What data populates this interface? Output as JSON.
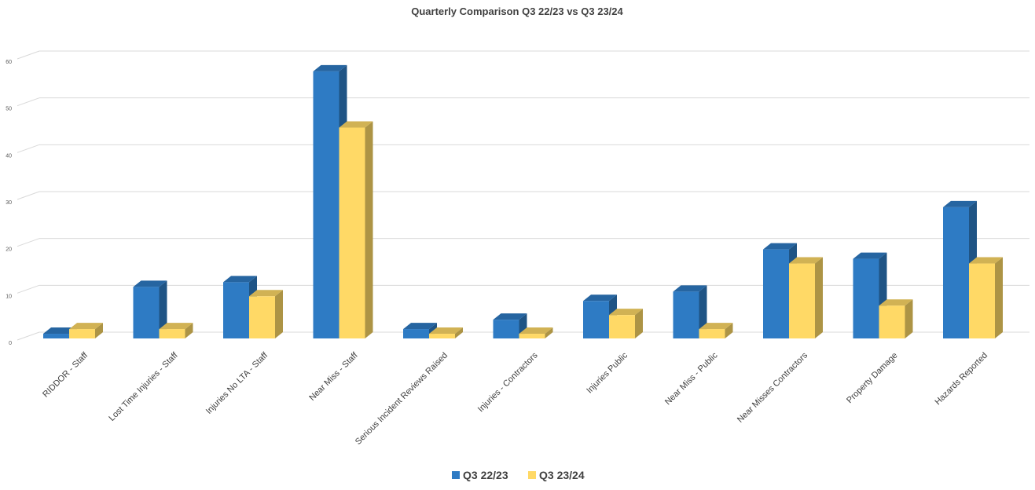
{
  "chart_data": {
    "type": "bar",
    "title": "Quarterly Comparison Q3 22/23 vs Q3 23/24",
    "xlabel": "",
    "ylabel": "",
    "ylim": [
      0,
      60
    ],
    "yticks": [
      0,
      10,
      20,
      30,
      40,
      50,
      60
    ],
    "grid": true,
    "style": "3d-clustered-column",
    "legend_position": "bottom",
    "categories": [
      "RIDDOR - Staff",
      "Lost Time Injuries - Staff",
      "Injuries No LTA - Staff",
      "Near Miss - Staff",
      "Serious Incident Reviews Raised",
      "Injuries - Contractors",
      "Injuries Public",
      "Near Miss - Public",
      "Near Misses Contractors",
      "Property Damage",
      "Hazards Reported"
    ],
    "series": [
      {
        "name": "Q3 22/23",
        "color": "#2E7BC4",
        "values": [
          1,
          11,
          12,
          57,
          2,
          4,
          8,
          10,
          19,
          17,
          28
        ]
      },
      {
        "name": "Q3 23/24",
        "color": "#FFD966",
        "values": [
          2,
          2,
          9,
          45,
          1,
          1,
          5,
          2,
          16,
          7,
          16
        ]
      }
    ]
  }
}
